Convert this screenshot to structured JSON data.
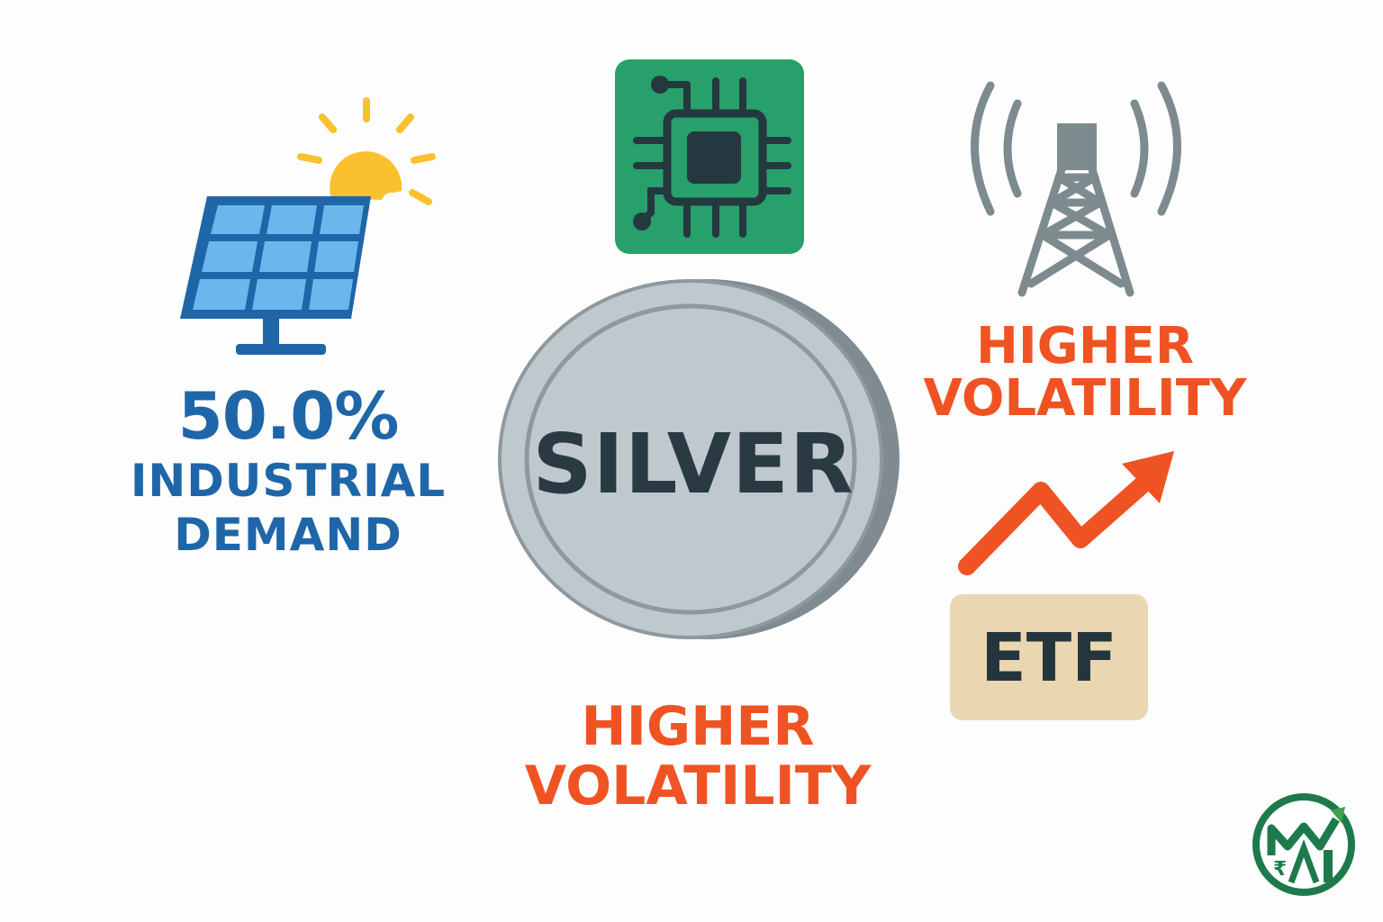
{
  "left": {
    "percent": "50.0%",
    "line1": "INDUSTRIAL",
    "line2": "DEMAND"
  },
  "center": {
    "coin_label": "SILVER",
    "bottom_line1": "HIGHER",
    "bottom_line2": "VOLATILITY"
  },
  "right": {
    "line1": "HIGHER",
    "line2": "VOLATILITY",
    "etf_label": "ETF"
  },
  "icons": {
    "solar": "solar-panel-icon",
    "sun": "sun-icon",
    "chip": "microchip-icon",
    "tower": "signal-tower-icon",
    "trend": "trend-up-arrow-icon",
    "logo": "brand-logo-icon"
  },
  "colors": {
    "blue": "#1f66a8",
    "orange": "#f05323",
    "green": "#27a06b",
    "dark": "#2a3a42",
    "silver": "#bfc8cd",
    "tan": "#ead6b0"
  }
}
